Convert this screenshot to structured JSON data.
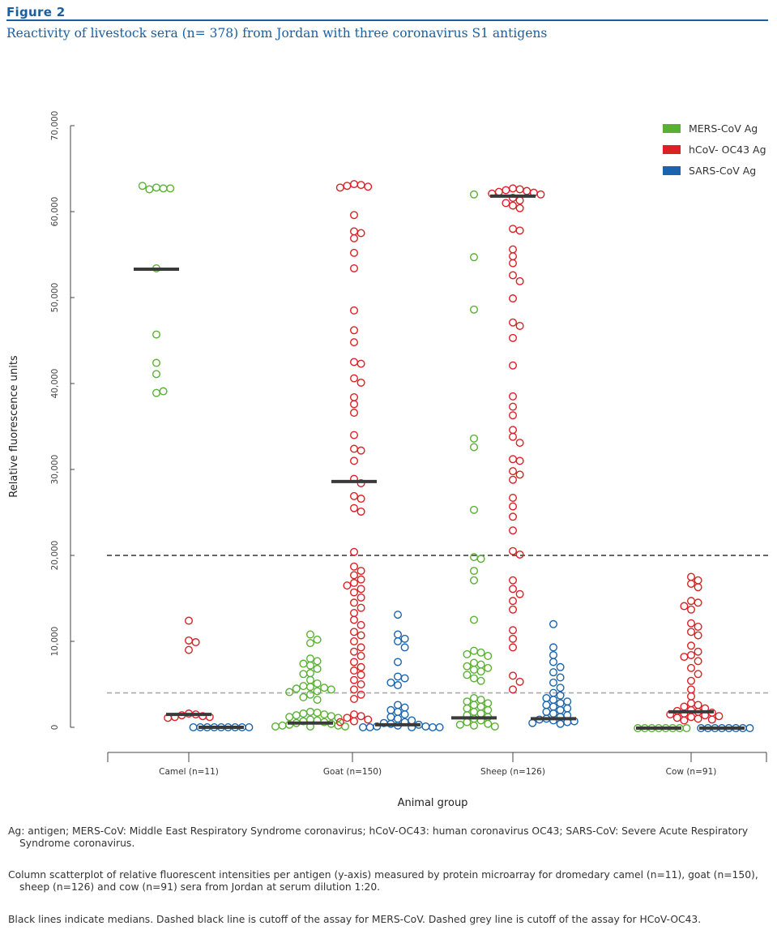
{
  "figure": {
    "label": "Figure 2",
    "title": "Reactivity of livestock sera (n= 378) from Jordan with three coronavirus S1 antigens"
  },
  "chart_data": {
    "type": "scatter",
    "xlabel": "Animal group",
    "ylabel": "Relative fluorescence units",
    "ylim": [
      0,
      70000
    ],
    "yticks": [
      0,
      10000,
      20000,
      30000,
      40000,
      50000,
      60000,
      70000
    ],
    "ytick_labels": [
      "0",
      "10,000",
      "20,000",
      "30,000",
      "40,000",
      "50,000",
      "60,000",
      "70,000"
    ],
    "categories": [
      "Camel (n=11)",
      "Goat (n=150)",
      "Sheep (n=126)",
      "Cow (n=91)"
    ],
    "legend_position": "top-right",
    "cutoffs": [
      {
        "value": 20000,
        "color": "#333333"
      },
      {
        "value": 4000,
        "color": "#aaaaaa"
      }
    ],
    "series": [
      {
        "name": "MERS-CoV Ag",
        "color": "#5ab034",
        "medians": [
          53300,
          500,
          1100,
          -100
        ],
        "values": [
          [
            62800,
            62700,
            62600,
            62700,
            63000,
            53400,
            45700,
            42400,
            41100,
            38900,
            39100
          ],
          [
            10800,
            10200,
            9800,
            8000,
            7700,
            7400,
            7200,
            6800,
            6300,
            6200,
            5500,
            5100,
            4800,
            4700,
            4600,
            4500,
            4400,
            4200,
            4100,
            3800,
            3500,
            3200,
            1800,
            1700,
            1600,
            1500,
            1400,
            1300,
            1200,
            1100,
            900,
            800,
            700,
            600,
            500,
            400,
            300,
            200,
            200,
            100,
            100,
            100
          ],
          [
            62000,
            54700,
            48600,
            33600,
            32600,
            25300,
            19800,
            19600,
            18200,
            17100,
            12500,
            8900,
            8700,
            8500,
            8300,
            7500,
            7300,
            7100,
            6900,
            6700,
            6500,
            6100,
            5700,
            5400,
            3400,
            3200,
            3000,
            2800,
            2600,
            2400,
            2200,
            2000,
            1800,
            1600,
            1400,
            1200,
            1000,
            800,
            600,
            400,
            300,
            200,
            100
          ],
          [
            -100,
            -100,
            -100,
            -100,
            -100,
            -100,
            -100,
            -100
          ]
        ]
      },
      {
        "name": "hCoV- OC43 Ag",
        "color": "#dd1f26",
        "medians": [
          1500,
          28600,
          61800,
          1800
        ],
        "values": [
          [
            12400,
            10100,
            9900,
            9000,
            1600,
            1500,
            1400,
            1300,
            1200,
            1200,
            1100
          ],
          [
            63200,
            63100,
            63000,
            62900,
            62800,
            59600,
            57700,
            57500,
            56900,
            55200,
            53400,
            48500,
            46200,
            44800,
            42500,
            42300,
            40600,
            40100,
            38400,
            37600,
            36600,
            34000,
            32400,
            32200,
            31000,
            28900,
            28400,
            26900,
            26600,
            25500,
            25100,
            20400,
            18700,
            18200,
            17700,
            17200,
            16800,
            16500,
            16100,
            15700,
            15100,
            14500,
            13900,
            13300,
            12500,
            11900,
            11100,
            10700,
            10000,
            9300,
            8800,
            8300,
            7600,
            7000,
            6600,
            6100,
            5500,
            5000,
            4400,
            3800,
            3300,
            1500,
            1300,
            1100,
            900,
            700,
            600
          ],
          [
            62700,
            62600,
            62500,
            62400,
            62300,
            62200,
            62100,
            62000,
            61600,
            61300,
            61000,
            60700,
            60400,
            58000,
            57800,
            55600,
            54800,
            54000,
            52600,
            51900,
            49900,
            47100,
            46700,
            45300,
            42100,
            38500,
            37300,
            36300,
            34600,
            33800,
            33100,
            31200,
            31000,
            29800,
            29400,
            28800,
            26700,
            25700,
            24500,
            22900,
            20500,
            20100,
            17100,
            16100,
            15500,
            14700,
            13700,
            11300,
            10300,
            9300,
            6000,
            5300,
            4400
          ],
          [
            17500,
            17100,
            16700,
            16300,
            14700,
            14500,
            14100,
            13700,
            12100,
            11700,
            11100,
            10700,
            9500,
            8800,
            8400,
            8200,
            7700,
            6900,
            6200,
            5400,
            4400,
            3600,
            2800,
            2600,
            2400,
            2200,
            2000,
            1900,
            1800,
            1700,
            1600,
            1500,
            1400,
            1300,
            1200,
            1100,
            1000,
            900,
            800
          ]
        ]
      },
      {
        "name": "SARS-CoV Ag",
        "color": "#1a64ad",
        "medians": [
          0,
          300,
          1000,
          -100
        ],
        "values": [
          [
            0,
            0,
            0,
            0,
            0,
            0,
            0,
            0,
            0
          ],
          [
            13100,
            10800,
            10300,
            10000,
            9300,
            7600,
            5900,
            5700,
            5200,
            4900,
            2600,
            2300,
            2000,
            1800,
            1500,
            1200,
            1000,
            800,
            600,
            500,
            400,
            300,
            200,
            100,
            100,
            0,
            0,
            0,
            0,
            0
          ],
          [
            12000,
            9300,
            8400,
            7600,
            7000,
            6400,
            5800,
            5200,
            4600,
            4000,
            3700,
            3400,
            3200,
            3000,
            2800,
            2600,
            2400,
            2200,
            2000,
            1800,
            1600,
            1400,
            1200,
            1000,
            900,
            800,
            700,
            600,
            500,
            400
          ],
          [
            -100,
            -100,
            -100,
            -100,
            -100,
            -100,
            -100,
            -100
          ]
        ]
      }
    ]
  },
  "notes": [
    "Ag: antigen; MERS-CoV: Middle East Respiratory Syndrome coronavirus; hCoV-OC43: human coronavirus OC43; SARS-CoV: Severe Acute Respiratory Syndrome coronavirus.",
    "Column scatterplot of relative fluorescent intensities per antigen (y-axis) measured by protein microarray for dromedary camel (n=11), goat (n=150), sheep (n=126) and cow (n=91) sera from Jordan at serum dilution 1:20.",
    "Black lines indicate medians. Dashed black line is cutoff of the assay for MERS-CoV. Dashed grey line is cutoff of the assay for HCoV-OC43."
  ]
}
